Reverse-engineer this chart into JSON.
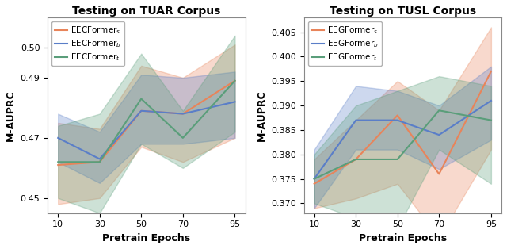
{
  "tuar": {
    "title": "Testing on TUAR Corpus",
    "xlabel": "Pretrain Epochs",
    "ylabel": "M-AUPRC",
    "x": [
      10,
      30,
      50,
      70,
      95
    ],
    "series": [
      {
        "label": "EECFormer$_s$",
        "color": "#E8845A",
        "mean": [
          0.461,
          0.462,
          0.479,
          0.478,
          0.489
        ],
        "lower": [
          0.448,
          0.45,
          0.467,
          0.462,
          0.47
        ],
        "upper": [
          0.475,
          0.473,
          0.494,
          0.49,
          0.501
        ]
      },
      {
        "label": "EECFormer$_b$",
        "color": "#5A7EC8",
        "mean": [
          0.47,
          0.463,
          0.479,
          0.478,
          0.482
        ],
        "lower": [
          0.462,
          0.455,
          0.468,
          0.468,
          0.47
        ],
        "upper": [
          0.478,
          0.472,
          0.491,
          0.49,
          0.492
        ]
      },
      {
        "label": "EECFormer$_t$",
        "color": "#5A9E7A",
        "mean": [
          0.462,
          0.462,
          0.483,
          0.47,
          0.489
        ],
        "lower": [
          0.45,
          0.445,
          0.468,
          0.46,
          0.472
        ],
        "upper": [
          0.474,
          0.478,
          0.498,
          0.479,
          0.504
        ]
      }
    ],
    "ylim": [
      0.445,
      0.51
    ],
    "yticks": [
      0.45,
      0.47,
      0.49,
      0.5
    ]
  },
  "tusl": {
    "title": "Testing on TUSL Corpus",
    "xlabel": "Pretrain Epochs",
    "ylabel": "M-AUPRC",
    "x": [
      10,
      30,
      50,
      70,
      95
    ],
    "series": [
      {
        "label": "EEGFormer$_s$",
        "color": "#E8845A",
        "mean": [
          0.374,
          0.379,
          0.388,
          0.376,
          0.397
        ],
        "lower": [
          0.369,
          0.371,
          0.374,
          0.363,
          0.381
        ],
        "upper": [
          0.379,
          0.387,
          0.395,
          0.389,
          0.406
        ]
      },
      {
        "label": "EEGFormer$_b$",
        "color": "#5A7EC8",
        "mean": [
          0.375,
          0.387,
          0.387,
          0.384,
          0.391
        ],
        "lower": [
          0.369,
          0.381,
          0.381,
          0.377,
          0.383
        ],
        "upper": [
          0.381,
          0.394,
          0.393,
          0.39,
          0.398
        ]
      },
      {
        "label": "EEGFormer$_t$",
        "color": "#5A9E7A",
        "mean": [
          0.375,
          0.379,
          0.379,
          0.389,
          0.387
        ],
        "lower": [
          0.37,
          0.367,
          0.365,
          0.381,
          0.374
        ],
        "upper": [
          0.38,
          0.39,
          0.393,
          0.396,
          0.394
        ]
      }
    ],
    "ylim": [
      0.368,
      0.408
    ],
    "yticks": [
      0.37,
      0.375,
      0.38,
      0.385,
      0.39,
      0.395,
      0.4,
      0.405
    ]
  },
  "alpha": 0.3,
  "linewidth": 1.5,
  "title_fontsize": 10,
  "label_fontsize": 9,
  "tick_fontsize": 8,
  "legend_fontsize": 7.5
}
